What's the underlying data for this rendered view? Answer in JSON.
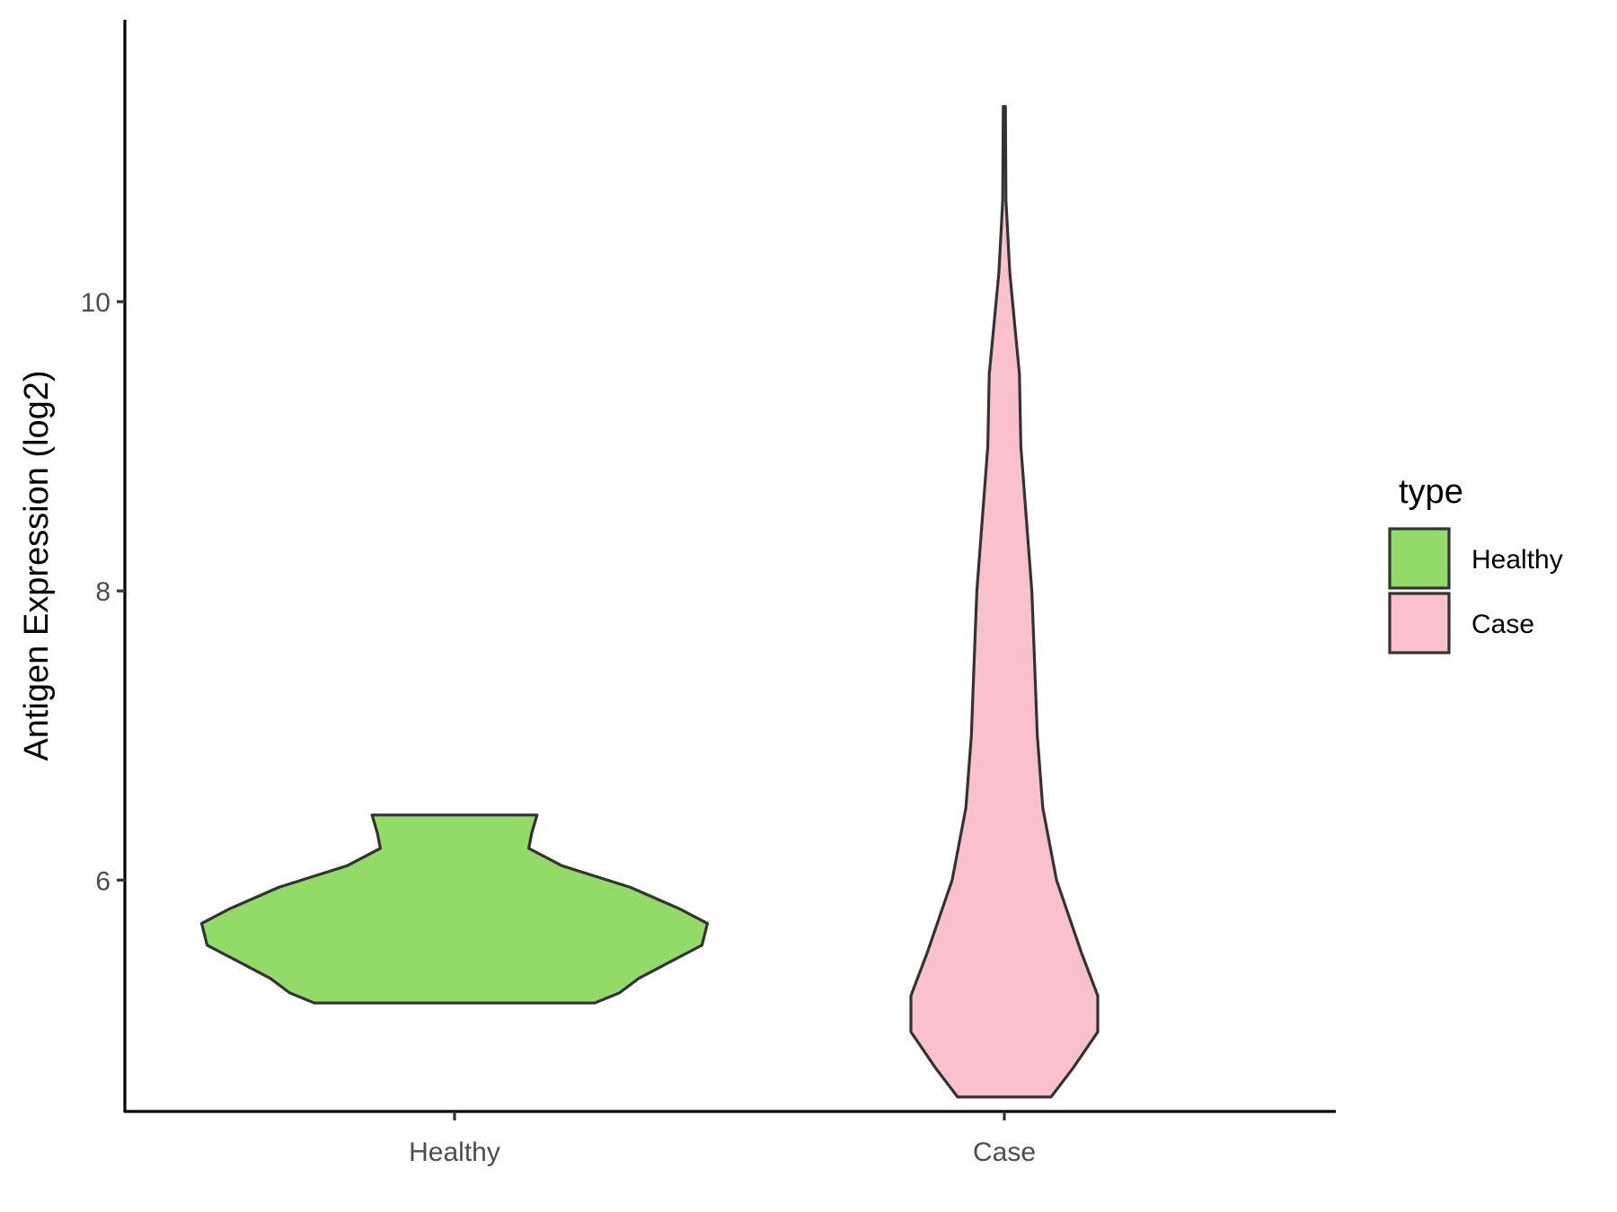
{
  "chart_data": {
    "type": "violin",
    "title": "",
    "xlabel": "",
    "ylabel": "Antigen Expression (log2)",
    "categories": [
      "Healthy",
      "Case"
    ],
    "y_ticks": [
      6,
      8,
      10
    ],
    "y_tick_labels": [
      "6",
      "8",
      "10"
    ],
    "ylim": [
      4.4,
      11.95
    ],
    "grid": false,
    "legend": {
      "title": "type",
      "position": "right",
      "entries": [
        {
          "label": "Healthy",
          "color": "#93DB69"
        },
        {
          "label": "Case",
          "color": "#F8C1CC"
        }
      ]
    },
    "series": [
      {
        "category": "Healthy",
        "color": "#93DB69",
        "min": 5.15,
        "max": 6.45,
        "density_profile": [
          [
            5.15,
            0.51
          ],
          [
            5.22,
            0.6
          ],
          [
            5.32,
            0.67
          ],
          [
            5.43,
            0.78
          ],
          [
            5.55,
            0.9
          ],
          [
            5.7,
            0.92
          ],
          [
            5.8,
            0.82
          ],
          [
            5.95,
            0.64
          ],
          [
            6.1,
            0.39
          ],
          [
            6.22,
            0.27
          ],
          [
            6.32,
            0.28
          ],
          [
            6.45,
            0.3
          ]
        ]
      },
      {
        "category": "Case",
        "color": "#F8C1CC",
        "min": 4.5,
        "max": 11.35,
        "density_profile": [
          [
            4.5,
            0.17
          ],
          [
            4.7,
            0.25
          ],
          [
            4.95,
            0.34
          ],
          [
            5.2,
            0.34
          ],
          [
            5.5,
            0.28
          ],
          [
            6.0,
            0.19
          ],
          [
            6.5,
            0.14
          ],
          [
            7.0,
            0.12
          ],
          [
            7.5,
            0.11
          ],
          [
            8.0,
            0.1
          ],
          [
            8.5,
            0.08
          ],
          [
            9.0,
            0.06
          ],
          [
            9.5,
            0.055
          ],
          [
            9.8,
            0.04
          ],
          [
            10.2,
            0.02
          ],
          [
            10.7,
            0.006
          ],
          [
            11.35,
            0.004
          ]
        ]
      }
    ]
  }
}
